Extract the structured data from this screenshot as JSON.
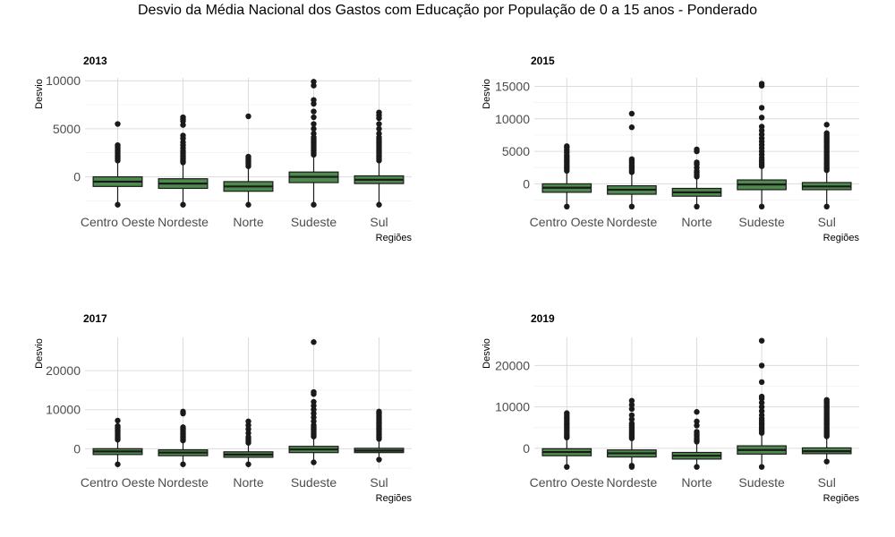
{
  "title": "Desvio da Média Nacional dos Gastos com Educação por População de 0 a 15 anos - Ponderado",
  "colors": {
    "box_fill": "#4e8a4e",
    "box_stroke": "#1a1a1a",
    "grid": "#dcdcdc",
    "point": "#1a1a1a"
  },
  "chart_data": [
    {
      "type": "box",
      "title": "2013",
      "xlabel": "Regiões",
      "ylabel": "Desvio",
      "ylim": [
        -3300,
        10300
      ],
      "yticks": [
        0,
        5000,
        10000
      ],
      "categories": [
        "Centro Oeste",
        "Nordeste",
        "Norte",
        "Sudeste",
        "Sul"
      ],
      "boxes": [
        {
          "q1": -1000,
          "median": -500,
          "q3": 0,
          "whisker_low": -2800,
          "whisker_high": 1500,
          "outliers": [
            -2900,
            1700,
            1900,
            2100,
            2300,
            2500,
            2700,
            2900,
            3100,
            3300,
            5500
          ]
        },
        {
          "q1": -1200,
          "median": -700,
          "q3": -200,
          "whisker_low": -2800,
          "whisker_high": 1300,
          "outliers": [
            -2900,
            1500,
            1700,
            1900,
            2100,
            2300,
            2500,
            2700,
            3000,
            3300,
            3600,
            4000,
            4300,
            5400,
            5800,
            6000,
            6200
          ]
        },
        {
          "q1": -1500,
          "median": -1000,
          "q3": -500,
          "whisker_low": -2800,
          "whisker_high": 900,
          "outliers": [
            -2900,
            1100,
            1300,
            1500,
            1700,
            1900,
            2100,
            6300
          ]
        },
        {
          "q1": -600,
          "median": 0,
          "q3": 500,
          "whisker_low": -2800,
          "whisker_high": 2100,
          "outliers": [
            -2900,
            2300,
            2500,
            2700,
            2900,
            3100,
            3300,
            3500,
            3700,
            3900,
            4100,
            4500,
            5000,
            5500,
            6200,
            6800,
            7600,
            8000,
            9500,
            9900
          ]
        },
        {
          "q1": -700,
          "median": -300,
          "q3": 100,
          "whisker_low": -2800,
          "whisker_high": 1500,
          "outliers": [
            -2900,
            1700,
            1900,
            2100,
            2300,
            2500,
            2700,
            2900,
            3100,
            3300,
            3500,
            3700,
            3900,
            4100,
            4500,
            5000,
            5500,
            6100,
            6400,
            6700
          ]
        }
      ]
    },
    {
      "type": "box",
      "title": "2015",
      "xlabel": "Regiões",
      "ylabel": "Desvio",
      "ylim": [
        -3800,
        16300
      ],
      "yticks": [
        0,
        5000,
        10000,
        15000
      ],
      "categories": [
        "Centro Oeste",
        "Nordeste",
        "Norte",
        "Sudeste",
        "Sul"
      ],
      "boxes": [
        {
          "q1": -1300,
          "median": -600,
          "q3": 0,
          "whisker_low": -3500,
          "whisker_high": 1800,
          "outliers": [
            -3500,
            2000,
            2300,
            2600,
            2900,
            3200,
            3500,
            3800,
            4100,
            4400,
            4800,
            5200,
            5600,
            5800
          ]
        },
        {
          "q1": -1600,
          "median": -900,
          "q3": -300,
          "whisker_low": -3500,
          "whisker_high": 1600,
          "outliers": [
            -3500,
            1800,
            2000,
            2300,
            2600,
            2900,
            3200,
            3500,
            3800,
            8700,
            10800
          ]
        },
        {
          "q1": -1900,
          "median": -1300,
          "q3": -700,
          "whisker_low": -3500,
          "whisker_high": 900,
          "outliers": [
            -3500,
            1100,
            1400,
            1700,
            2000,
            2500,
            3000,
            3300,
            5000,
            5300
          ]
        },
        {
          "q1": -900,
          "median": -100,
          "q3": 600,
          "whisker_low": -3500,
          "whisker_high": 2500,
          "outliers": [
            -3500,
            2700,
            3000,
            3300,
            3600,
            4000,
            4500,
            5000,
            5500,
            6000,
            6500,
            7000,
            7600,
            8200,
            8800,
            10200,
            11700,
            15100,
            15400
          ]
        },
        {
          "q1": -900,
          "median": -400,
          "q3": 200,
          "whisker_low": -3500,
          "whisker_high": 1900,
          "outliers": [
            -3500,
            2100,
            2400,
            2700,
            3000,
            3300,
            3600,
            3900,
            4200,
            4500,
            4800,
            5100,
            5400,
            5700,
            6000,
            6300,
            6600,
            6900,
            7200,
            7500,
            7800,
            9100
          ]
        }
      ]
    },
    {
      "type": "box",
      "title": "2017",
      "xlabel": "Regiões",
      "ylabel": "Desvio",
      "ylim": [
        -5200,
        28500
      ],
      "yticks": [
        0,
        10000,
        20000
      ],
      "categories": [
        "Centro Oeste",
        "Nordeste",
        "Norte",
        "Sudeste",
        "Sul"
      ],
      "boxes": [
        {
          "q1": -1500,
          "median": -700,
          "q3": 0,
          "whisker_low": -3800,
          "whisker_high": 2000,
          "outliers": [
            -4000,
            2300,
            2800,
            3300,
            3800,
            4300,
            4800,
            5300,
            5800,
            7200
          ]
        },
        {
          "q1": -1800,
          "median": -1000,
          "q3": -300,
          "whisker_low": -3800,
          "whisker_high": 1800,
          "outliers": [
            -4000,
            2100,
            2500,
            2900,
            3300,
            3700,
            4100,
            4500,
            5000,
            5500,
            9000,
            9500
          ]
        },
        {
          "q1": -2200,
          "median": -1500,
          "q3": -800,
          "whisker_low": -3800,
          "whisker_high": 1200,
          "outliers": [
            -4000,
            1500,
            2000,
            2500,
            3000,
            4000,
            5000,
            6000,
            7000
          ]
        },
        {
          "q1": -1000,
          "median": -200,
          "q3": 600,
          "whisker_low": -3300,
          "whisker_high": 2800,
          "outliers": [
            -3500,
            3100,
            3500,
            4000,
            4500,
            5000,
            5500,
            6000,
            7000,
            8000,
            9000,
            10000,
            11000,
            12000,
            14000,
            14500,
            27300
          ]
        },
        {
          "q1": -1000,
          "median": -500,
          "q3": 100,
          "whisker_low": -2500,
          "whisker_high": 2200,
          "outliers": [
            -2800,
            2500,
            3000,
            3500,
            4000,
            4500,
            5000,
            5500,
            6000,
            6500,
            7000,
            7500,
            8000,
            8500,
            9000,
            9500
          ]
        }
      ]
    },
    {
      "type": "box",
      "title": "2019",
      "xlabel": "Regiões",
      "ylabel": "Desvio",
      "ylim": [
        -5000,
        26800
      ],
      "yticks": [
        0,
        10000,
        20000
      ],
      "categories": [
        "Centro Oeste",
        "Nordeste",
        "Norte",
        "Sudeste",
        "Sul"
      ],
      "boxes": [
        {
          "q1": -1800,
          "median": -900,
          "q3": -100,
          "whisker_low": -4500,
          "whisker_high": 2300,
          "outliers": [
            -4500,
            2600,
            3000,
            3500,
            4000,
            4500,
            5000,
            5500,
            6000,
            6500,
            7000,
            7500,
            8000,
            8500
          ]
        },
        {
          "q1": -2100,
          "median": -1200,
          "q3": -400,
          "whisker_low": -4500,
          "whisker_high": 2100,
          "outliers": [
            -4500,
            -4200,
            2400,
            2800,
            3200,
            3600,
            4000,
            4500,
            5000,
            5500,
            6000,
            7000,
            8000,
            9500,
            10500,
            11500
          ]
        },
        {
          "q1": -2600,
          "median": -1800,
          "q3": -1000,
          "whisker_low": -4500,
          "whisker_high": 1300,
          "outliers": [
            -4500,
            1600,
            2000,
            2500,
            3000,
            3500,
            4000,
            5500,
            6500,
            8800
          ]
        },
        {
          "q1": -1400,
          "median": -400,
          "q3": 600,
          "whisker_low": -4500,
          "whisker_high": 3400,
          "outliers": [
            -4500,
            3700,
            4200,
            4700,
            5200,
            5700,
            6200,
            6700,
            7200,
            8000,
            9000,
            10000,
            11000,
            12000,
            12500,
            16000,
            20000,
            26000
          ]
        },
        {
          "q1": -1300,
          "median": -700,
          "q3": 100,
          "whisker_low": -3000,
          "whisker_high": 2600,
          "outliers": [
            -3200,
            2900,
            3300,
            3700,
            4100,
            4500,
            4900,
            5300,
            5700,
            6100,
            6500,
            6900,
            7300,
            7700,
            8100,
            8500,
            8900,
            9300,
            9700,
            10100,
            10500,
            10900,
            11300,
            11700
          ]
        }
      ]
    }
  ]
}
